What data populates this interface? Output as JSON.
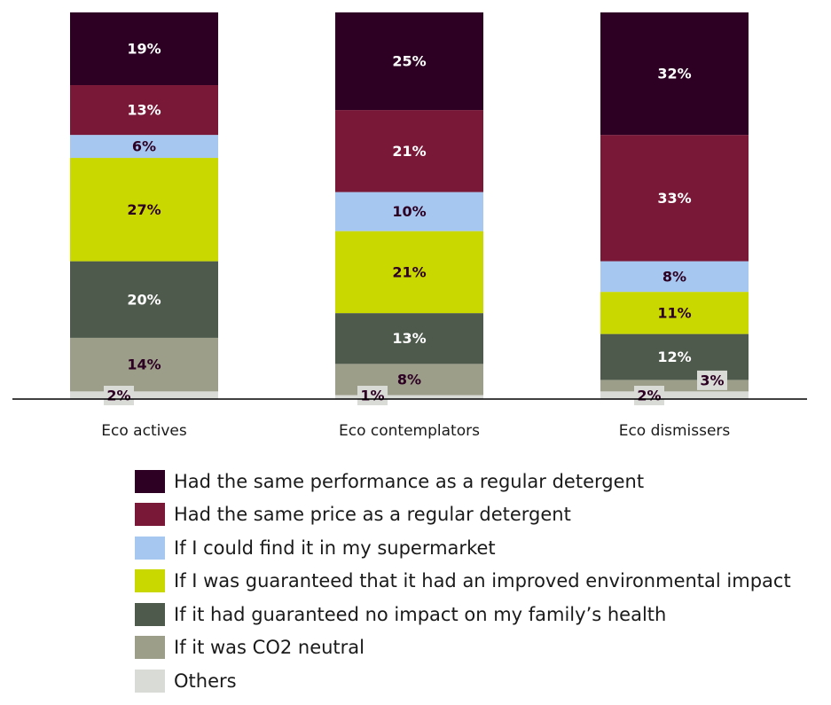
{
  "chart_data": {
    "type": "bar",
    "stacked": true,
    "categories": [
      "Eco actives",
      "Eco contemplators",
      "Eco dismissers"
    ],
    "ylim": [
      0,
      100
    ],
    "grid": false,
    "legend_position": "bottom",
    "series": [
      {
        "name": "Had the same performance as a regular detergent",
        "color": "#2d0023",
        "values": [
          19,
          25,
          32
        ],
        "labels": [
          "19%",
          "25%",
          "32%"
        ]
      },
      {
        "name": "Had the same price as a regular detergent",
        "color": "#7a1838",
        "values": [
          13,
          21,
          33
        ],
        "labels": [
          "13%",
          "21%",
          "33%"
        ]
      },
      {
        "name": "If I could find it in my supermarket",
        "color": "#a6c8f0",
        "values": [
          6,
          10,
          8
        ],
        "labels": [
          "6%",
          "10%",
          "8%"
        ]
      },
      {
        "name": "If I was guaranteed that it had an improved environmental impact",
        "color": "#c9d900",
        "values": [
          27,
          21,
          11
        ],
        "labels": [
          "27%",
          "21%",
          "11%"
        ]
      },
      {
        "name": "If it had guaranteed no impact on my family’s health",
        "color": "#4e5a4c",
        "values": [
          20,
          13,
          12
        ],
        "labels": [
          "20%",
          "13%",
          "12%"
        ]
      },
      {
        "name": "If it was CO2 neutral",
        "color": "#9c9e8a",
        "values": [
          14,
          8,
          3
        ],
        "labels": [
          "14%",
          "8%",
          "3%"
        ]
      },
      {
        "name": "Others",
        "color": "#d9dbd7",
        "values": [
          2,
          1,
          2
        ],
        "labels": [
          "2%",
          "1%",
          "2%"
        ]
      }
    ]
  }
}
